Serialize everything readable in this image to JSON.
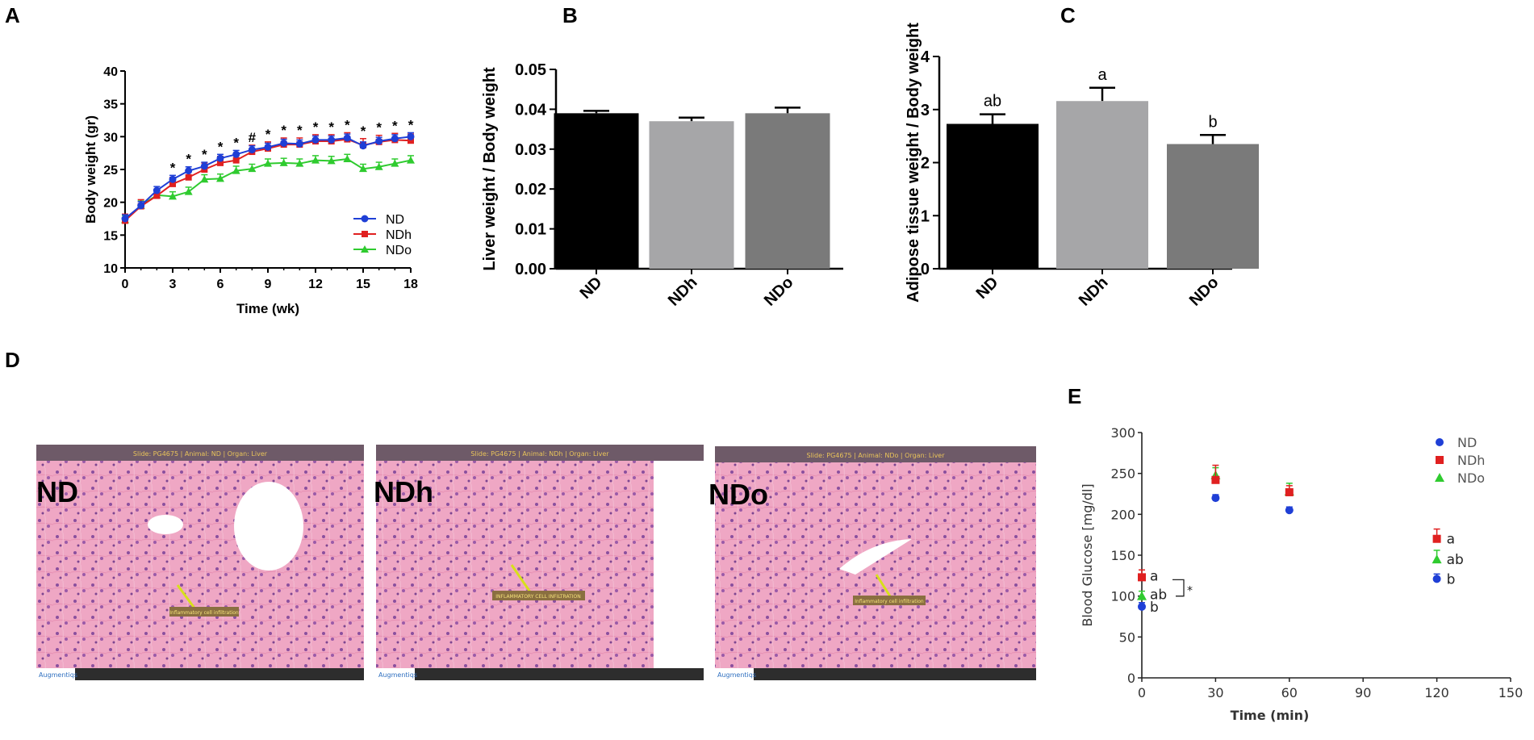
{
  "panels": {
    "A": "A",
    "B": "B",
    "C": "C",
    "D": "D",
    "E": "E"
  },
  "colors": {
    "ND": "#1f3fd6",
    "NDh": "#e02020",
    "NDo": "#2fcb2f",
    "barND": "#000000",
    "barNDh": "#a6a6a8",
    "barNDo": "#7a7a7a"
  },
  "chart_data": [
    {
      "panel": "A",
      "type": "line",
      "xlabel": "Time (wk)",
      "ylabel": "Body weight (gr)",
      "xlim": [
        0,
        18
      ],
      "ylim": [
        10,
        40
      ],
      "xticks": [
        0,
        3,
        6,
        9,
        12,
        15,
        18
      ],
      "yticks": [
        10,
        15,
        20,
        25,
        30,
        35,
        40
      ],
      "x": [
        0,
        1,
        2,
        3,
        4,
        5,
        6,
        7,
        8,
        9,
        10,
        11,
        12,
        13,
        14,
        15,
        16,
        17,
        18
      ],
      "series": [
        {
          "name": "ND",
          "values": [
            17.5,
            19.5,
            21.8,
            23.5,
            24.8,
            25.5,
            26.7,
            27.3,
            28.0,
            28.4,
            29.0,
            28.9,
            29.5,
            29.5,
            29.8,
            28.6,
            29.3,
            29.7,
            30.0
          ]
        },
        {
          "name": "NDh",
          "values": [
            17.2,
            19.4,
            21.0,
            22.8,
            23.8,
            25.0,
            26.0,
            26.4,
            27.7,
            28.2,
            28.8,
            28.8,
            29.3,
            29.3,
            29.6,
            28.7,
            29.2,
            29.5,
            29.4
          ]
        },
        {
          "name": "NDo",
          "values": [
            17.3,
            19.5,
            21.1,
            20.9,
            21.6,
            23.5,
            23.6,
            24.8,
            25.1,
            25.9,
            26.0,
            25.9,
            26.4,
            26.3,
            26.6,
            25.1,
            25.4,
            25.9,
            26.4
          ]
        }
      ],
      "errors": {
        "ND": 0.6,
        "NDh": 1.0,
        "NDo": 0.7
      },
      "annotations": [
        {
          "x": 3,
          "text": "*"
        },
        {
          "x": 4,
          "text": "*"
        },
        {
          "x": 5,
          "text": "*"
        },
        {
          "x": 6,
          "text": "*"
        },
        {
          "x": 7,
          "text": "*"
        },
        {
          "x": 8,
          "text": "#"
        },
        {
          "x": 9,
          "text": "*"
        },
        {
          "x": 10,
          "text": "*"
        },
        {
          "x": 11,
          "text": "*"
        },
        {
          "x": 12,
          "text": "*"
        },
        {
          "x": 13,
          "text": "*"
        },
        {
          "x": 14,
          "text": "*"
        },
        {
          "x": 15,
          "text": "*"
        },
        {
          "x": 16,
          "text": "*"
        },
        {
          "x": 17,
          "text": "*"
        },
        {
          "x": 18,
          "text": "*"
        }
      ],
      "legend": [
        "ND",
        "NDh",
        "NDo"
      ],
      "legend_position": "bottom-right"
    },
    {
      "panel": "B",
      "type": "bar",
      "ylabel": "Liver weight / Body weight",
      "categories": [
        "ND",
        "NDh",
        "NDo"
      ],
      "values": [
        0.039,
        0.037,
        0.039
      ],
      "errors": [
        0.0006,
        0.0009,
        0.0014
      ],
      "ylim": [
        0,
        0.05
      ],
      "yticks": [
        "0.00",
        "0.01",
        "0.02",
        "0.03",
        "0.04",
        "0.05"
      ]
    },
    {
      "panel": "C",
      "type": "bar",
      "ylabel": "Adipose tissue weight / Body weight",
      "categories": [
        "ND",
        "NDh",
        "NDo"
      ],
      "values": [
        2.73,
        3.16,
        2.35
      ],
      "errors": [
        0.18,
        0.25,
        0.17
      ],
      "letters": [
        "ab",
        "a",
        "b"
      ],
      "ylim": [
        0,
        4
      ],
      "yticks": [
        "0",
        "1",
        "2",
        "3",
        "4"
      ]
    },
    {
      "panel": "E",
      "type": "scatter",
      "xlabel": "Time (min)",
      "ylabel": "Blood Glucose [mg/dl]",
      "xlim": [
        0,
        150
      ],
      "ylim": [
        0,
        300
      ],
      "xticks": [
        0,
        30,
        60,
        90,
        120,
        150
      ],
      "yticks": [
        0,
        50,
        100,
        150,
        200,
        250,
        300
      ],
      "x": [
        0,
        30,
        60,
        120
      ],
      "series": [
        {
          "name": "ND",
          "values": [
            87,
            220,
            205,
            121
          ]
        },
        {
          "name": "NDh",
          "values": [
            123,
            242,
            227,
            170
          ]
        },
        {
          "name": "NDo",
          "values": [
            100,
            248,
            228,
            145
          ]
        }
      ],
      "errors": {
        "ND": [
          5,
          4,
          4,
          6
        ],
        "NDh": [
          9,
          18,
          8,
          12
        ],
        "NDo": [
          6,
          9,
          10,
          11
        ]
      },
      "letters_t0": {
        "NDh": "a",
        "NDo": "ab",
        "ND": "b"
      },
      "letters_t120": {
        "NDh": "a",
        "NDo": "ab",
        "ND": "b"
      },
      "bracket_marker": "*",
      "legend": [
        "ND",
        "NDh",
        "NDo"
      ],
      "legend_position": "top-right"
    }
  ],
  "micrographs": [
    {
      "label": "ND",
      "annotation": "Inflammatory cell infiltration",
      "brand": "Augmentiqs",
      "header": "Slide: PG4675 | Animal: ND | Organ: Liver"
    },
    {
      "label": "NDh",
      "annotation": "INFLAMMATORY CELL INFILTRATION",
      "brand": "Augmentiqs",
      "header": "Slide: PG4675 | Animal: NDh | Organ: Liver"
    },
    {
      "label": "NDo",
      "annotation": "Inflammatory cell infiltration",
      "brand": "Augmentiqs",
      "header": "Slide: PG4675 | Animal: NDo | Organ: Liver"
    }
  ]
}
